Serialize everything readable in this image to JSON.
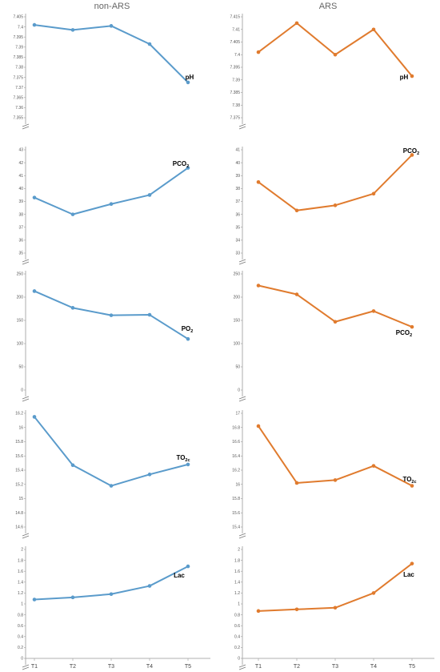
{
  "columns": {
    "left": "non-ARS",
    "right": "ARS"
  },
  "series_colors": {
    "non-ARS": "#5a9bcb",
    "ARS": "#e07b2e"
  },
  "chart_data": [
    {
      "type": "line",
      "column": "non-ARS",
      "label": "pH",
      "label_sub": "",
      "categories": [
        "T1",
        "T2",
        "T3",
        "T4",
        "T5"
      ],
      "values": [
        7.401,
        7.3985,
        7.4005,
        7.3915,
        7.3725
      ],
      "yticks": [
        "7.405",
        "7.4",
        "7.395",
        "7.39",
        "7.385",
        "7.38",
        "7.375",
        "7.37",
        "7.365",
        "7.36",
        "7.355"
      ],
      "ylim": [
        7.355,
        7.405
      ],
      "axis_break": true
    },
    {
      "type": "line",
      "column": "ARS",
      "label": "pH",
      "label_sub": "",
      "categories": [
        "T1",
        "T2",
        "T3",
        "T4",
        "T5"
      ],
      "values": [
        7.401,
        7.4125,
        7.4,
        7.41,
        7.3915
      ],
      "yticks": [
        "7.415",
        "7.41",
        "7.405",
        "7.4",
        "7.395",
        "7.39",
        "7.385",
        "7.38",
        "7.375"
      ],
      "ylim": [
        7.375,
        7.415
      ],
      "axis_break": true
    },
    {
      "type": "line",
      "column": "non-ARS",
      "label": "PCO",
      "label_sub": "2",
      "categories": [
        "T1",
        "T2",
        "T3",
        "T4",
        "T5"
      ],
      "values": [
        39.3,
        38.0,
        38.8,
        39.5,
        41.6
      ],
      "yticks": [
        "43",
        "42",
        "41",
        "40",
        "39",
        "38",
        "37",
        "36",
        "35"
      ],
      "ylim": [
        35,
        43
      ],
      "axis_break": true
    },
    {
      "type": "line",
      "column": "ARS",
      "label": "PCO",
      "label_sub": "2",
      "categories": [
        "T1",
        "T2",
        "T3",
        "T4",
        "T5"
      ],
      "values": [
        38.5,
        36.3,
        36.7,
        37.6,
        40.6
      ],
      "yticks": [
        "41",
        "40",
        "39",
        "38",
        "37",
        "36",
        "35",
        "34",
        "33"
      ],
      "ylim": [
        33,
        41
      ],
      "axis_break": true
    },
    {
      "type": "line",
      "column": "non-ARS",
      "label": "PO",
      "label_sub": "2",
      "categories": [
        "T1",
        "T2",
        "T3",
        "T4",
        "T5"
      ],
      "values": [
        213,
        177,
        161,
        162,
        110
      ],
      "yticks": [
        "250",
        "200",
        "150",
        "100",
        "50",
        "0"
      ],
      "ylim": [
        0,
        250
      ],
      "axis_break": true
    },
    {
      "type": "line",
      "column": "ARS",
      "label": "PCO",
      "label_sub": "2",
      "categories": [
        "T1",
        "T2",
        "T3",
        "T4",
        "T5"
      ],
      "values": [
        225,
        206,
        147,
        170,
        136
      ],
      "yticks": [
        "250",
        "200",
        "150",
        "100",
        "50",
        "0"
      ],
      "ylim": [
        0,
        250
      ],
      "axis_break": true
    },
    {
      "type": "line",
      "column": "non-ARS",
      "label": "TO",
      "label_sub": "2c",
      "categories": [
        "T1",
        "T2",
        "T3",
        "T4",
        "T5"
      ],
      "values": [
        16.15,
        15.47,
        15.18,
        15.34,
        15.48
      ],
      "yticks": [
        "16.2",
        "16",
        "15.8",
        "15.6",
        "15.4",
        "15.2",
        "15",
        "14.8",
        "14.6"
      ],
      "ylim": [
        14.6,
        16.2
      ],
      "axis_break": true
    },
    {
      "type": "line",
      "column": "ARS",
      "label": "TO",
      "label_sub": "2c",
      "categories": [
        "T1",
        "T2",
        "T3",
        "T4",
        "T5"
      ],
      "values": [
        16.82,
        16.02,
        16.06,
        16.26,
        15.98
      ],
      "yticks": [
        "17",
        "16.8",
        "16.6",
        "16.4",
        "16.2",
        "16",
        "15.8",
        "15.6",
        "15.4"
      ],
      "ylim": [
        15.4,
        17.0
      ],
      "axis_break": true
    },
    {
      "type": "line",
      "column": "non-ARS",
      "label": "Lac",
      "label_sub": "",
      "categories": [
        "T1",
        "T2",
        "T3",
        "T4",
        "T5"
      ],
      "values": [
        1.08,
        1.12,
        1.18,
        1.33,
        1.69
      ],
      "yticks": [
        "2",
        "1.8",
        "1.6",
        "1.4",
        "1.2",
        "1",
        "0.8",
        "0.6",
        "0.4",
        "0.2",
        "0"
      ],
      "ylim": [
        0,
        2
      ],
      "axis_break": true
    },
    {
      "type": "line",
      "column": "ARS",
      "label": "Lac",
      "label_sub": "",
      "categories": [
        "T1",
        "T2",
        "T3",
        "T4",
        "T5"
      ],
      "values": [
        0.87,
        0.9,
        0.93,
        1.2,
        1.74
      ],
      "yticks": [
        "2",
        "1.8",
        "1.6",
        "1.4",
        "1.2",
        "1",
        "0.8",
        "0.6",
        "0.4",
        "0.2",
        "0"
      ],
      "ylim": [
        0,
        2
      ],
      "axis_break": true
    }
  ]
}
